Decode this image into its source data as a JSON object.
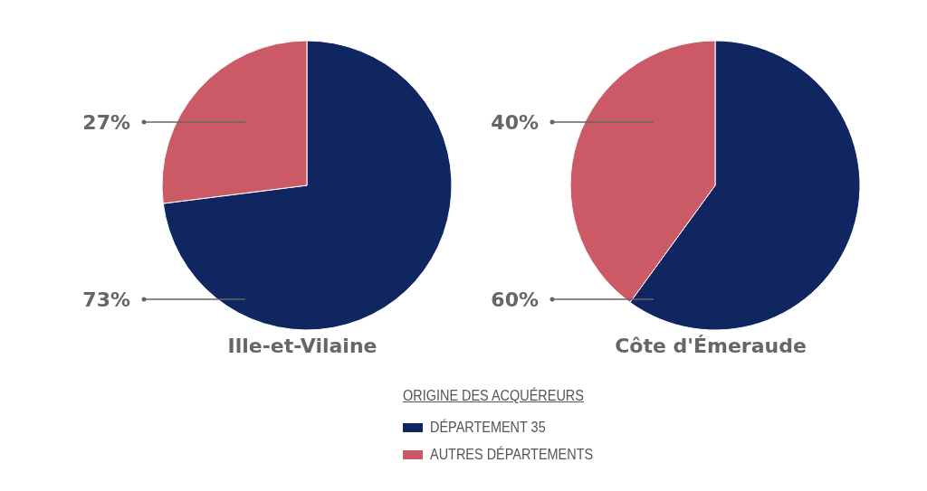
{
  "chart_data": [
    {
      "type": "pie",
      "title": "Ille-et-Vilaine",
      "categories": [
        "DÉPARTEMENT 35",
        "AUTRES DÉPARTEMENTS"
      ],
      "values": [
        73,
        27
      ],
      "colors": [
        "#0f2660",
        "#cb5a66"
      ],
      "value_labels": [
        "73%",
        "27%"
      ],
      "legend": "bottom",
      "legend_title": "ORIGINE DES ACQUÉREURS"
    },
    {
      "type": "pie",
      "title": "Côte d'Émeraude",
      "categories": [
        null,
        null
      ],
      "values": [
        60,
        40
      ],
      "colors": [
        "#0f2660",
        "#cb5a66"
      ],
      "value_labels": [
        "60%",
        "40%"
      ]
    }
  ]
}
